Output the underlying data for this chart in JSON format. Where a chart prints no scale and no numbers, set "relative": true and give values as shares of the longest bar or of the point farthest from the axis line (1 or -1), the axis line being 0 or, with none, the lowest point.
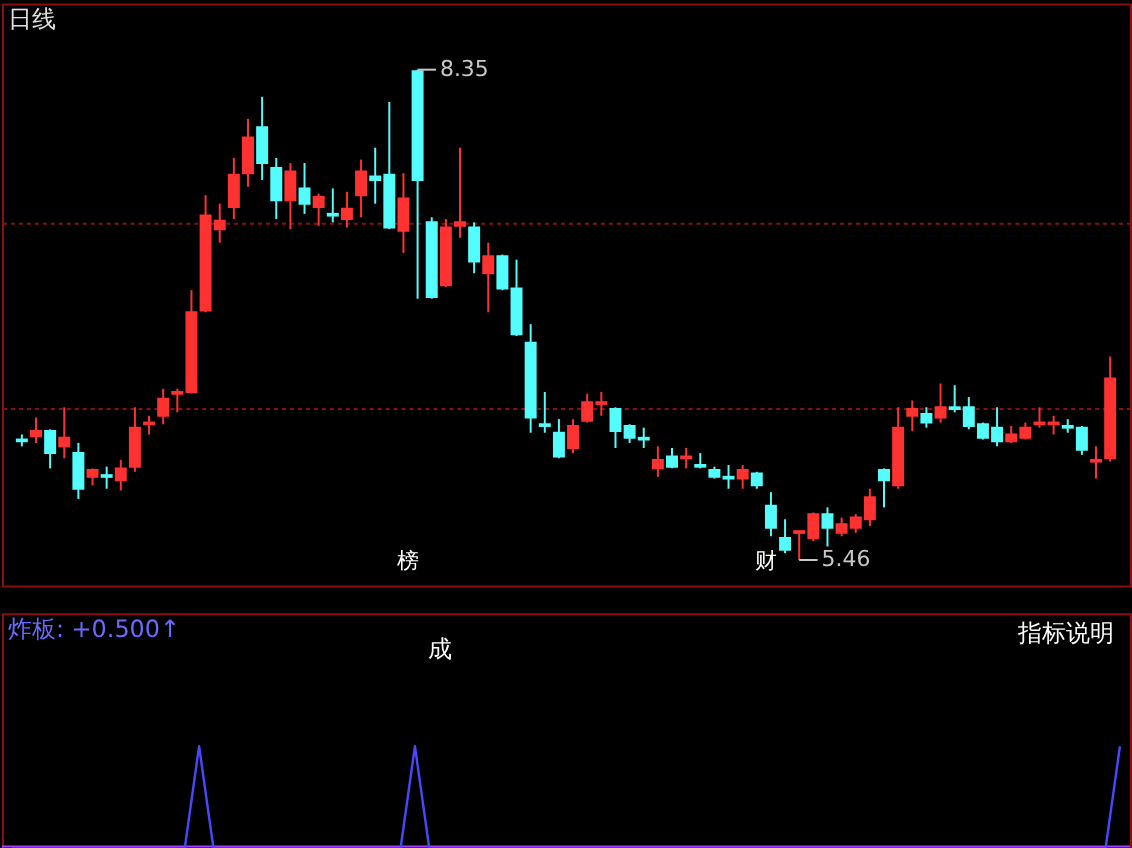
{
  "chart_data": [
    {
      "type": "candlestick",
      "title": "日线",
      "categories": [
        null,
        null,
        null,
        null,
        null,
        null,
        null,
        null,
        null,
        null,
        null,
        null,
        null,
        null,
        null,
        null,
        null,
        null,
        null,
        null,
        null,
        null,
        null,
        null,
        null,
        null,
        null,
        null,
        null,
        null,
        null,
        null,
        null,
        null,
        null,
        null,
        null,
        null,
        null,
        null,
        null,
        null,
        null,
        null,
        null,
        null,
        null,
        null,
        null,
        null,
        null,
        null,
        null,
        null,
        null,
        null,
        null,
        null,
        null,
        null,
        null,
        null,
        null,
        null,
        null,
        null,
        null,
        null,
        null,
        null,
        null,
        null,
        null,
        null,
        null,
        null,
        null,
        null
      ],
      "ohlc": [
        [
          6.17,
          6.2,
          6.13,
          6.16
        ],
        [
          6.19,
          6.3,
          6.15,
          6.22
        ],
        [
          6.22,
          6.23,
          6.0,
          6.09
        ],
        [
          6.13,
          6.36,
          6.06,
          6.18
        ],
        [
          6.09,
          6.15,
          5.82,
          5.88
        ],
        [
          5.95,
          6.0,
          5.9,
          5.99
        ],
        [
          5.96,
          6.01,
          5.88,
          5.95
        ],
        [
          5.93,
          6.05,
          5.87,
          6.0
        ],
        [
          6.01,
          6.36,
          5.98,
          6.24
        ],
        [
          6.26,
          6.31,
          6.2,
          6.27
        ],
        [
          6.31,
          6.47,
          6.26,
          6.41
        ],
        [
          6.44,
          6.47,
          6.33,
          6.45
        ],
        [
          6.45,
          7.05,
          6.44,
          6.92
        ],
        [
          6.93,
          7.61,
          6.92,
          7.49
        ],
        [
          7.41,
          7.56,
          7.33,
          7.46
        ],
        [
          7.54,
          7.83,
          7.47,
          7.73
        ],
        [
          7.74,
          8.06,
          7.66,
          7.95
        ],
        [
          8.01,
          8.19,
          7.7,
          7.8
        ],
        [
          7.77,
          7.83,
          7.47,
          7.58
        ],
        [
          7.58,
          7.8,
          7.41,
          7.75
        ],
        [
          7.65,
          7.8,
          7.5,
          7.56
        ],
        [
          7.54,
          7.62,
          7.43,
          7.6
        ],
        [
          7.5,
          7.65,
          7.45,
          7.49
        ],
        [
          7.47,
          7.63,
          7.42,
          7.53
        ],
        [
          7.61,
          7.82,
          7.48,
          7.75
        ],
        [
          7.72,
          7.89,
          7.56,
          7.7
        ],
        [
          7.73,
          8.16,
          7.41,
          7.42
        ],
        [
          7.4,
          7.74,
          7.27,
          7.59
        ],
        [
          8.34,
          8.35,
          7.0,
          7.7
        ],
        [
          7.45,
          7.48,
          7.0,
          7.01
        ],
        [
          7.08,
          7.47,
          7.07,
          7.42
        ],
        [
          7.43,
          7.89,
          7.36,
          7.45
        ],
        [
          7.42,
          7.45,
          7.15,
          7.22
        ],
        [
          7.15,
          7.33,
          6.92,
          7.25
        ],
        [
          7.25,
          7.26,
          7.05,
          7.06
        ],
        [
          7.06,
          7.23,
          6.78,
          6.79
        ],
        [
          6.74,
          6.85,
          6.21,
          6.3
        ],
        [
          6.26,
          6.45,
          6.21,
          6.25
        ],
        [
          6.21,
          6.29,
          6.06,
          6.07
        ],
        [
          6.12,
          6.29,
          6.09,
          6.25
        ],
        [
          6.28,
          6.44,
          6.27,
          6.39
        ],
        [
          6.38,
          6.45,
          6.31,
          6.39
        ],
        [
          6.35,
          6.36,
          6.12,
          6.22
        ],
        [
          6.25,
          6.26,
          6.15,
          6.18
        ],
        [
          6.18,
          6.24,
          6.12,
          6.17
        ],
        [
          6.0,
          6.13,
          5.95,
          6.05
        ],
        [
          6.07,
          6.12,
          6.0,
          6.01
        ],
        [
          6.06,
          6.12,
          6.0,
          6.07
        ],
        [
          6.02,
          6.09,
          6.0,
          6.01
        ],
        [
          5.99,
          6.01,
          5.94,
          5.95
        ],
        [
          5.95,
          6.02,
          5.88,
          5.94
        ],
        [
          5.94,
          6.02,
          5.88,
          5.99
        ],
        [
          5.97,
          5.98,
          5.88,
          5.9
        ],
        [
          5.78,
          5.86,
          5.6,
          5.65
        ],
        [
          5.59,
          5.7,
          5.5,
          5.52
        ],
        [
          5.62,
          5.63,
          5.46,
          5.63
        ],
        [
          5.59,
          5.74,
          5.57,
          5.73
        ],
        [
          5.73,
          5.77,
          5.54,
          5.65
        ],
        [
          5.62,
          5.71,
          5.6,
          5.67
        ],
        [
          5.65,
          5.73,
          5.62,
          5.71
        ],
        [
          5.7,
          5.88,
          5.66,
          5.83
        ],
        [
          5.99,
          6.0,
          5.77,
          5.93
        ],
        [
          5.9,
          6.36,
          5.88,
          6.24
        ],
        [
          6.31,
          6.4,
          6.22,
          6.35
        ],
        [
          6.32,
          6.36,
          6.24,
          6.27
        ],
        [
          6.3,
          6.5,
          6.27,
          6.36
        ],
        [
          6.36,
          6.49,
          6.33,
          6.35
        ],
        [
          6.36,
          6.42,
          6.23,
          6.25
        ],
        [
          6.26,
          6.27,
          6.17,
          6.18
        ],
        [
          6.24,
          6.36,
          6.13,
          6.16
        ],
        [
          6.16,
          6.25,
          6.15,
          6.2
        ],
        [
          6.18,
          6.27,
          6.17,
          6.24
        ],
        [
          6.26,
          6.36,
          6.24,
          6.27
        ],
        [
          6.26,
          6.31,
          6.2,
          6.27
        ],
        [
          6.25,
          6.29,
          6.21,
          6.24
        ],
        [
          6.24,
          6.25,
          6.08,
          6.11
        ],
        [
          6.04,
          6.13,
          5.94,
          6.05
        ],
        [
          6.06,
          6.66,
          6.04,
          6.53
        ]
      ],
      "colors": [
        "#54fcfc",
        "#ff3232",
        "#54fcfc",
        "#ff3232",
        "#54fcfc",
        "#ff3232",
        "#54fcfc",
        "#ff3232",
        "#ff3232",
        "#ff3232",
        "#ff3232",
        "#ff3232",
        "#ff3232",
        "#ff3232",
        "#ff3232",
        "#ff3232",
        "#ff3232",
        "#54fcfc",
        "#54fcfc",
        "#ff3232",
        "#54fcfc",
        "#ff3232",
        "#54fcfc",
        "#ff3232",
        "#ff3232",
        "#54fcfc",
        "#54fcfc",
        "#ff3232",
        "#54fcfc",
        "#54fcfc",
        "#ff3232",
        "#ff3232",
        "#54fcfc",
        "#ff3232",
        "#54fcfc",
        "#54fcfc",
        "#54fcfc",
        "#54fcfc",
        "#54fcfc",
        "#ff3232",
        "#ff3232",
        "#ff3232",
        "#54fcfc",
        "#54fcfc",
        "#54fcfc",
        "#ff3232",
        "#54fcfc",
        "#ff3232",
        "#54fcfc",
        "#54fcfc",
        "#54fcfc",
        "#ff3232",
        "#54fcfc",
        "#54fcfc",
        "#54fcfc",
        "#ff3232",
        "#ff3232",
        "#54fcfc",
        "#ff3232",
        "#ff3232",
        "#ff3232",
        "#54fcfc",
        "#ff3232",
        "#ff3232",
        "#54fcfc",
        "#ff3232",
        "#54fcfc",
        "#54fcfc",
        "#54fcfc",
        "#54fcfc",
        "#ff3232",
        "#ff3232",
        "#ff3232",
        "#ff3232",
        "#54fcfc",
        "#54fcfc",
        "#ff3232",
        "#ff3232"
      ],
      "ylim": [
        5.31,
        8.74
      ],
      "yticks": [
        {
          "value": 6.35,
          "label": null
        },
        {
          "value": 7.45,
          "label": null
        }
      ],
      "grid": "y",
      "tick_labels": false,
      "annotations": [
        "榜",
        "财",
        "8.35",
        "5.46"
      ]
    },
    {
      "type": "line",
      "title": "炸板: +0.500↑",
      "relative": true,
      "tick_labels": false,
      "categories": [
        null,
        null,
        null,
        null,
        null,
        null,
        null,
        null,
        null,
        null,
        null,
        null,
        null,
        null,
        null,
        null,
        null,
        null,
        null,
        null,
        null,
        null,
        null,
        null,
        null,
        null,
        null,
        null,
        null,
        null,
        null,
        null,
        null,
        null,
        null,
        null,
        null,
        null,
        null,
        null,
        null,
        null,
        null,
        null,
        null,
        null,
        null,
        null,
        null,
        null,
        null,
        null,
        null,
        null,
        null,
        null,
        null,
        null,
        null,
        null,
        null,
        null,
        null,
        null,
        null,
        null,
        null,
        null,
        null,
        null,
        null,
        null,
        null,
        null,
        null,
        null,
        null,
        null
      ],
      "series": [
        {
          "color": "#4848ff",
          "values": [
            0,
            0,
            0,
            0,
            0,
            0,
            0,
            0,
            0,
            0,
            0,
            0,
            0,
            1,
            0,
            0,
            0,
            0,
            0,
            0,
            0,
            0,
            0,
            0,
            0,
            0,
            0,
            0,
            1,
            0,
            0,
            0,
            0,
            0,
            0,
            0,
            0,
            0,
            0,
            0,
            0,
            0,
            0,
            0,
            0,
            0,
            0,
            0,
            0,
            0,
            0,
            0,
            0,
            0,
            0,
            0,
            0,
            0,
            0,
            0,
            0,
            0,
            0,
            0,
            0,
            0,
            0,
            0,
            0,
            0,
            0,
            0,
            0,
            0,
            0,
            0,
            0,
            1
          ]
        }
      ],
      "annotations": [
        "成",
        "指标说明"
      ]
    }
  ]
}
